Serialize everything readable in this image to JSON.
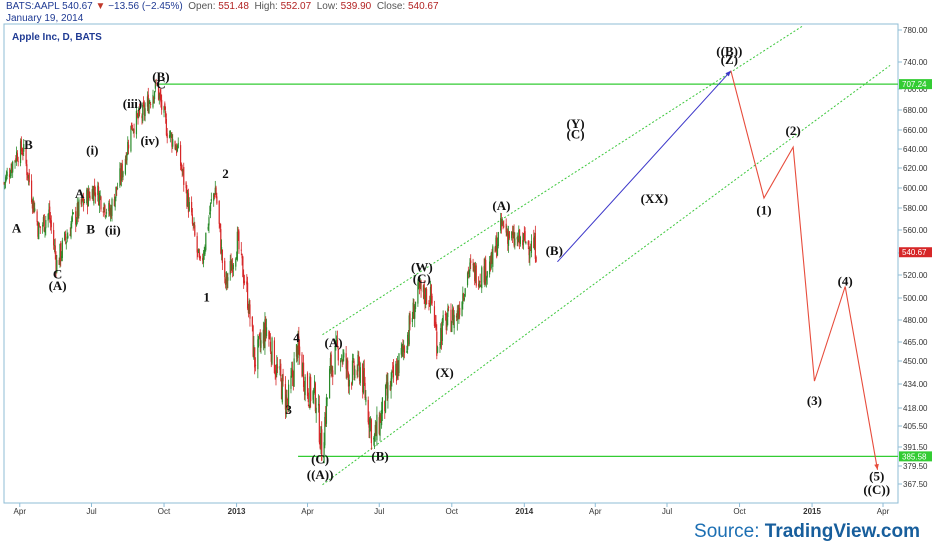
{
  "header": {
    "symbol": "BATS:AAPL",
    "last": "540.67",
    "change": "−13.56 (−2.45%)",
    "open_label": "Open:",
    "open": "551.48",
    "high_label": "High:",
    "high": "552.07",
    "low_label": "Low:",
    "low": "539.90",
    "close_label": "Close:",
    "close": "540.67",
    "date": "January 19, 2014"
  },
  "source": {
    "prefix": "Source: ",
    "brand": "TradingView.com"
  },
  "colors": {
    "up": "#2a8a2a",
    "down": "#d62728",
    "projection": "#e74c3c",
    "projection_blue": "#3b36c9",
    "channel": "#3cc73c",
    "hline": "#33cc33",
    "axis": "#8fbcd6",
    "last_tag": "#d62728",
    "hline_tag": "#33cc33"
  },
  "chart_data": {
    "type": "candlestick",
    "title": "Apple Inc, D, BATS",
    "y_ticks": [
      367.5,
      379.5,
      391.5,
      405.5,
      418,
      434,
      450,
      465,
      480,
      500,
      520,
      540,
      560,
      580,
      600,
      620,
      640,
      660,
      680,
      700,
      720,
      740,
      780
    ],
    "y_tick_labels": [
      "367.50",
      "379.50",
      "391.50",
      "405.50",
      "418.00",
      "434.00",
      "450.00",
      "465.00",
      "480.00",
      "500.00",
      "520.00",
      "540.00",
      "560.00",
      "580.00",
      "600.00",
      "620.00",
      "640.00",
      "660.00",
      "680.00",
      "700.00",
      "720.00",
      "740.00",
      "780.00"
    ],
    "ylim": [
      356,
      790
    ],
    "x_ticks": [
      {
        "label": "Apr",
        "date": "2012-04-01",
        "bold": false
      },
      {
        "label": "Jul",
        "date": "2012-07-01",
        "bold": false
      },
      {
        "label": "Oct",
        "date": "2012-10-01",
        "bold": false
      },
      {
        "label": "2013",
        "date": "2013-01-01",
        "bold": true
      },
      {
        "label": "Apr",
        "date": "2013-04-01",
        "bold": false
      },
      {
        "label": "Jul",
        "date": "2013-07-01",
        "bold": false
      },
      {
        "label": "Oct",
        "date": "2013-10-01",
        "bold": false
      },
      {
        "label": "2014",
        "date": "2014-01-01",
        "bold": true
      },
      {
        "label": "Apr",
        "date": "2014-04-01",
        "bold": false
      },
      {
        "label": "Jul",
        "date": "2014-07-01",
        "bold": false
      },
      {
        "label": "Oct",
        "date": "2014-10-01",
        "bold": false
      },
      {
        "label": "2015",
        "date": "2015-01-01",
        "bold": true
      },
      {
        "label": "Apr",
        "date": "2015-04-01",
        "bold": false
      }
    ],
    "xlim": [
      "2012-03-12",
      "2015-04-20"
    ],
    "price_path": [
      [
        "2012-03-12",
        605
      ],
      [
        "2012-03-28",
        635
      ],
      [
        "2012-04-05",
        640
      ],
      [
        "2012-04-17",
        590
      ],
      [
        "2012-04-25",
        560
      ],
      [
        "2012-05-08",
        575
      ],
      [
        "2012-05-18",
        530
      ],
      [
        "2012-06-05",
        565
      ],
      [
        "2012-06-20",
        585
      ],
      [
        "2012-07-05",
        600
      ],
      [
        "2012-07-24",
        575
      ],
      [
        "2012-08-10",
        620
      ],
      [
        "2012-08-21",
        665
      ],
      [
        "2012-09-04",
        675
      ],
      [
        "2012-09-21",
        705
      ],
      [
        "2012-10-05",
        660
      ],
      [
        "2012-10-18",
        640
      ],
      [
        "2012-11-02",
        580
      ],
      [
        "2012-11-16",
        525
      ],
      [
        "2012-11-30",
        585
      ],
      [
        "2012-12-05",
        600
      ],
      [
        "2012-12-17",
        510
      ],
      [
        "2012-12-24",
        525
      ],
      [
        "2013-01-02",
        550
      ],
      [
        "2013-01-14",
        505
      ],
      [
        "2013-01-24",
        450
      ],
      [
        "2013-02-08",
        475
      ],
      [
        "2013-02-20",
        445
      ],
      [
        "2013-03-07",
        420
      ],
      [
        "2013-03-19",
        460
      ],
      [
        "2013-04-01",
        430
      ],
      [
        "2013-04-12",
        425
      ],
      [
        "2013-04-19",
        390
      ],
      [
        "2013-04-30",
        445
      ],
      [
        "2013-05-10",
        460
      ],
      [
        "2013-05-24",
        440
      ],
      [
        "2013-06-07",
        445
      ],
      [
        "2013-06-24",
        395
      ],
      [
        "2013-07-10",
        425
      ],
      [
        "2013-07-24",
        445
      ],
      [
        "2013-08-06",
        470
      ],
      [
        "2013-08-20",
        505
      ],
      [
        "2013-09-05",
        500
      ],
      [
        "2013-09-12",
        465
      ],
      [
        "2013-09-24",
        480
      ],
      [
        "2013-10-08",
        485
      ],
      [
        "2013-10-22",
        525
      ],
      [
        "2013-11-06",
        520
      ],
      [
        "2013-11-20",
        530
      ],
      [
        "2013-12-04",
        565
      ],
      [
        "2013-12-18",
        550
      ],
      [
        "2014-01-02",
        550
      ],
      [
        "2014-01-15",
        545
      ],
      [
        "2014-01-17",
        540.67
      ]
    ],
    "horizontal_lines": [
      {
        "value": 707.24,
        "label": "707.24",
        "start": "2012-09-24"
      },
      {
        "value": 385.58,
        "label": "385.58",
        "start": "2013-03-20"
      }
    ],
    "last_price": {
      "value": 540.67,
      "label": "540.67"
    },
    "channel_lines": [
      {
        "from": [
          "2013-04-20",
          470
        ],
        "to": [
          "2014-12-20",
          785
        ]
      },
      {
        "from": [
          "2013-04-20",
          367
        ],
        "to": [
          "2015-04-10",
          735
        ]
      }
    ],
    "projection_blue": [
      [
        "2014-02-12",
        532
      ],
      [
        "2014-09-20",
        727
      ]
    ],
    "projection_red": [
      [
        "2014-09-20",
        727
      ],
      [
        "2014-11-01",
        590
      ],
      [
        "2014-12-08",
        642
      ],
      [
        "2015-01-04",
        436
      ],
      [
        "2015-02-12",
        510
      ],
      [
        "2015-03-25",
        377
      ]
    ],
    "wave_labels": [
      {
        "text": "B",
        "date": "2012-04-12",
        "price": 640
      },
      {
        "text": "A",
        "date": "2012-03-28",
        "price": 558
      },
      {
        "text": "C",
        "date": "2012-05-19",
        "price": 517
      },
      {
        "text": "(A)",
        "date": "2012-05-19",
        "price": 507
      },
      {
        "text": "A",
        "date": "2012-06-16",
        "price": 590
      },
      {
        "text": "B",
        "date": "2012-06-30",
        "price": 557
      },
      {
        "text": "(i)",
        "date": "2012-07-02",
        "price": 634
      },
      {
        "text": "(ii)",
        "date": "2012-07-28",
        "price": 556
      },
      {
        "text": "(iii)",
        "date": "2012-08-22",
        "price": 682
      },
      {
        "text": "(iv)",
        "date": "2012-09-13",
        "price": 644
      },
      {
        "text": "(B)",
        "date": "2012-09-27",
        "price": 712
      },
      {
        "text": "C",
        "date": "2012-09-27",
        "price": 701
      },
      {
        "text": "2",
        "date": "2012-12-18",
        "price": 610
      },
      {
        "text": "1",
        "date": "2012-11-24",
        "price": 497
      },
      {
        "text": "4",
        "date": "2013-03-18",
        "price": 465
      },
      {
        "text": "3",
        "date": "2013-03-08",
        "price": 414
      },
      {
        "text": "(A)",
        "date": "2013-05-04",
        "price": 461
      },
      {
        "text": "(C)",
        "date": "2013-04-17",
        "price": 381
      },
      {
        "text": "((A))",
        "date": "2013-04-17",
        "price": 371
      },
      {
        "text": "(B)",
        "date": "2013-07-02",
        "price": 383
      },
      {
        "text": "(W)",
        "date": "2013-08-24",
        "price": 523
      },
      {
        "text": "(C)",
        "date": "2013-08-24",
        "price": 513
      },
      {
        "text": "(X)",
        "date": "2013-09-22",
        "price": 439
      },
      {
        "text": "(A)",
        "date": "2013-12-03",
        "price": 578
      },
      {
        "text": "(B)",
        "date": "2014-02-08",
        "price": 538
      },
      {
        "text": "(Y)",
        "date": "2014-03-07",
        "price": 662
      },
      {
        "text": "(C)",
        "date": "2014-03-07",
        "price": 651
      },
      {
        "text": "(XX)",
        "date": "2014-06-15",
        "price": 585
      },
      {
        "text": "((B))",
        "date": "2014-09-18",
        "price": 748
      },
      {
        "text": "(Z)",
        "date": "2014-09-18",
        "price": 737
      },
      {
        "text": "(2)",
        "date": "2014-12-08",
        "price": 655
      },
      {
        "text": "(1)",
        "date": "2014-11-01",
        "price": 574
      },
      {
        "text": "(4)",
        "date": "2015-02-12",
        "price": 511
      },
      {
        "text": "(3)",
        "date": "2015-01-04",
        "price": 420
      },
      {
        "text": "(5)",
        "date": "2015-03-24",
        "price": 370
      },
      {
        "text": "((C))",
        "date": "2015-03-24",
        "price": 361
      }
    ]
  }
}
